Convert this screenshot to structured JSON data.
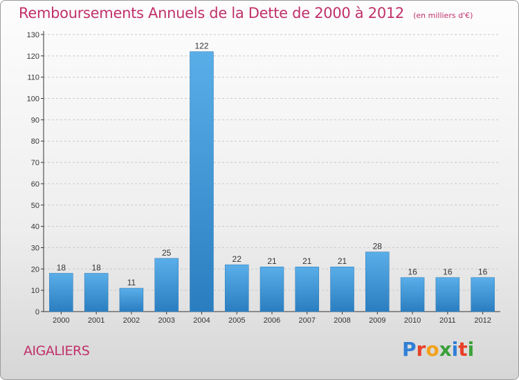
{
  "title": "Remboursements Annuels de la Dette de 2000 à 2012",
  "unit": "(en milliers d'€)",
  "location": "AIGALIERS",
  "logo": {
    "text": "Proxiti",
    "letters": [
      {
        "ch": "P",
        "color": "#2f7fd6"
      },
      {
        "ch": "r",
        "color": "#e8402a"
      },
      {
        "ch": "o",
        "color": "#f2a21b"
      },
      {
        "ch": "x",
        "color": "#3aa13a"
      },
      {
        "ch": "i",
        "color": "#2f7fd6"
      },
      {
        "ch": "t",
        "color": "#e8402a"
      },
      {
        "ch": "i",
        "color": "#3aa13a"
      }
    ]
  },
  "colors": {
    "title": "#c0306a",
    "bar_top": "#5aaee8",
    "bar_bottom": "#2a7ec0",
    "grid": "#c8c8c8"
  },
  "chart_data": {
    "type": "bar",
    "categories": [
      "2000",
      "2001",
      "2002",
      "2003",
      "2004",
      "2005",
      "2006",
      "2007",
      "2008",
      "2009",
      "2010",
      "2011",
      "2012"
    ],
    "values": [
      18,
      18,
      11,
      25,
      122,
      22,
      21,
      21,
      21,
      28,
      16,
      16,
      16
    ],
    "ylim": [
      0,
      130
    ],
    "yticks": [
      0,
      10,
      20,
      30,
      40,
      50,
      60,
      70,
      80,
      90,
      100,
      110,
      120,
      130
    ],
    "grid": true,
    "data_labels": true
  }
}
